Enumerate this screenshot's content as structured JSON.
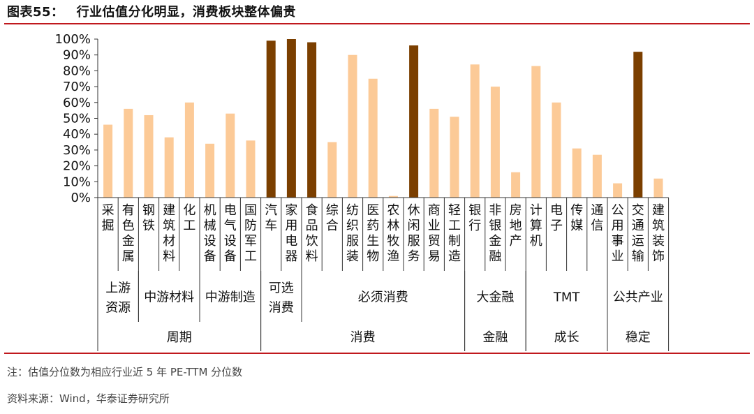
{
  "header": {
    "figure_label": "图表55：",
    "title": "行业估值分化明显，消费板块整体偏贵",
    "accent_color": "#c0181d"
  },
  "chart_data": {
    "type": "bar",
    "ylim": [
      0,
      100
    ],
    "yticks": [
      "0%",
      "10%",
      "20%",
      "30%",
      "40%",
      "50%",
      "60%",
      "70%",
      "80%",
      "90%",
      "100%"
    ],
    "grid": false,
    "colors": {
      "normal": "#fcca97",
      "highlight": "#7b3f00"
    },
    "categories": [
      "采掘",
      "有色金属",
      "钢铁",
      "建筑材料",
      "化工",
      "机械设备",
      "电气设备",
      "国防军工",
      "汽车",
      "家用电器",
      "食品饮料",
      "综合",
      "纺织服装",
      "医药生物",
      "农林牧渔",
      "休闲服务",
      "商业贸易",
      "轻工制造",
      "银行",
      "非银金融",
      "房地产",
      "计算机",
      "电子",
      "传媒",
      "通信",
      "公用事业",
      "交通运输",
      "建筑装饰"
    ],
    "values": [
      46,
      56,
      52,
      38,
      60,
      34,
      53,
      36,
      99,
      100,
      98,
      35,
      90,
      75,
      1,
      96,
      56,
      51,
      84,
      70,
      16,
      83,
      60,
      31,
      27,
      9,
      92,
      12
    ],
    "highlighted": [
      "汽车",
      "家用电器",
      "食品饮料",
      "休闲服务",
      "交通运输"
    ],
    "groups_level1": [
      {
        "label": "上游资源",
        "start": 0,
        "end": 1
      },
      {
        "label": "中游材料",
        "start": 2,
        "end": 4
      },
      {
        "label": "中游制造",
        "start": 5,
        "end": 7
      },
      {
        "label": "可选消费",
        "start": 8,
        "end": 9
      },
      {
        "label": "必须消费",
        "start": 10,
        "end": 17
      },
      {
        "label": "大金融",
        "start": 18,
        "end": 20
      },
      {
        "label": "TMT",
        "start": 21,
        "end": 24
      },
      {
        "label": "公共产业",
        "start": 25,
        "end": 27
      }
    ],
    "groups_level2": [
      {
        "label": "周期",
        "start": 0,
        "end": 7
      },
      {
        "label": "消费",
        "start": 8,
        "end": 17
      },
      {
        "label": "金融",
        "start": 18,
        "end": 20
      },
      {
        "label": "成长",
        "start": 21,
        "end": 24
      },
      {
        "label": "稳定",
        "start": 25,
        "end": 27
      }
    ]
  },
  "footer": {
    "note": "注：估值分位数为相应行业近 5 年 PE-TTM 分位数",
    "source": "资料来源：Wind，华泰证券研究所"
  }
}
